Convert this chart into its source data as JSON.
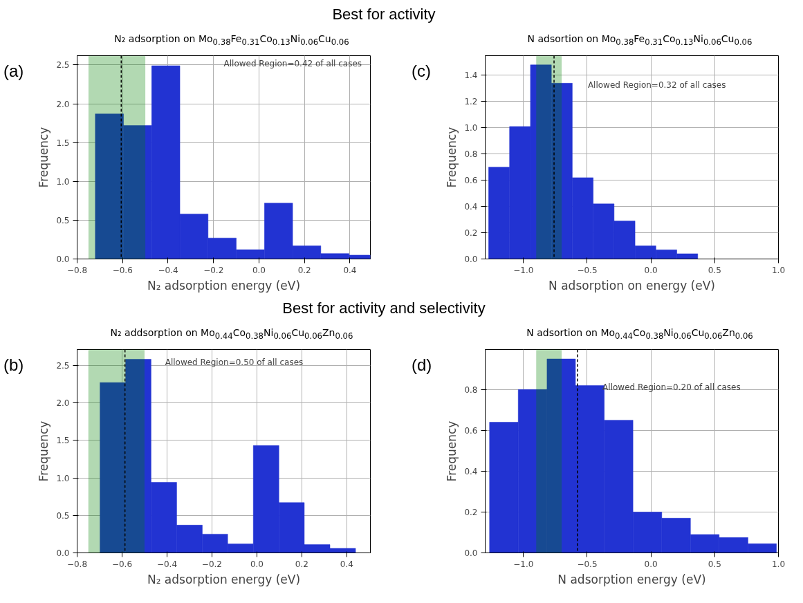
{
  "chart_data": [
    {
      "type": "histogram",
      "title": "N₂ adsorption on Mo$_{0.38}$Fe$_{0.31}$Co$_{0.13}$Ni$_{0.06}$Cu$_{0.06}$",
      "xlabel": "N₂ adsorption energy (eV)",
      "ylabel": "Frequency",
      "annotations": [
        "(a)",
        "Allowed Region=0.42 of all cases",
        "Best for activity"
      ],
      "bins": [
        -0.72,
        -0.596,
        -0.472,
        -0.348,
        -0.224,
        -0.1,
        0.024,
        0.148,
        0.272,
        0.396,
        0.49
      ],
      "values": [
        1.87,
        1.72,
        2.49,
        0.58,
        0.27,
        0.12,
        0.72,
        0.17,
        0.07,
        0.05
      ],
      "color": "#2233d2",
      "xlim": [
        -0.8,
        0.49
      ],
      "ylim": [
        0,
        2.62
      ],
      "xticks": [
        -0.8,
        -0.6,
        -0.4,
        -0.2,
        {
          "value": 0,
          "label": "0.0"
        },
        0.2,
        0.4
      ],
      "yticks": [
        {
          "value": 0,
          "label": "0.0"
        },
        0.5,
        {
          "value": 1,
          "label": "1.0"
        },
        1.5,
        {
          "value": 2,
          "label": "2.0"
        },
        2.5
      ],
      "grid": true,
      "ref_lines": [
        {
          "axis": "x",
          "value": -0.606,
          "color": "#000000",
          "line_style": "dashed"
        }
      ],
      "bands": [
        {
          "axis": "x",
          "from": -0.75,
          "to": -0.5,
          "color": "#008000"
        }
      ]
    },
    {
      "type": "histogram",
      "title": "N adsortion on Mo$_{0.38}$Fe$_{0.31}$Co$_{0.13}$Ni$_{0.06}$Cu$_{0.06}$",
      "xlabel": "N adsorption on energy (eV)",
      "ylabel": "Frequency",
      "annotations": [
        "(c)",
        "Allowed Region=0.32 of all cases"
      ],
      "bins": [
        -1.273,
        -1.109,
        -0.945,
        -0.781,
        -0.617,
        -0.453,
        -0.289,
        -0.125,
        0.039,
        0.203,
        0.367
      ],
      "values": [
        0.7,
        1.01,
        1.48,
        1.34,
        0.62,
        0.42,
        0.29,
        0.1,
        0.07,
        0.04
      ],
      "color": "#2233d2",
      "xlim": [
        -1.3,
        1.0
      ],
      "ylim": [
        0,
        1.55
      ],
      "xticks": [
        {
          "value": -1,
          "label": "−1.0"
        },
        -0.5,
        {
          "value": 0,
          "label": "0.0"
        },
        0.5,
        {
          "value": 1,
          "label": "1.0"
        }
      ],
      "yticks": [
        {
          "value": 0,
          "label": "0.0"
        },
        0.2,
        0.4,
        0.6,
        0.8,
        {
          "value": 1,
          "label": "1.0"
        },
        1.2,
        1.4
      ],
      "grid": true,
      "ref_lines": [
        {
          "axis": "x",
          "value": -0.76,
          "color": "#000000",
          "line_style": "dashed"
        }
      ],
      "bands": [
        {
          "axis": "x",
          "from": -0.9,
          "to": -0.7,
          "color": "#008000"
        }
      ]
    },
    {
      "type": "histogram",
      "title": "N₂ addsorption on Mo$_{0.44}$Co$_{0.38}$Ni$_{0.06}$Cu$_{0.06}$Zn$_{0.06}$",
      "xlabel": "N₂ adsorption energy (eV)",
      "ylabel": "Frequency",
      "annotations": [
        "(b)",
        "Allowed Region=0.50 of all cases",
        "Best for activity and selectivity"
      ],
      "bins": [
        -0.698,
        -0.584,
        -0.471,
        -0.357,
        -0.243,
        -0.13,
        -0.016,
        0.098,
        0.211,
        0.325,
        0.439
      ],
      "values": [
        2.27,
        2.58,
        0.94,
        0.37,
        0.25,
        0.12,
        1.43,
        0.67,
        0.11,
        0.06
      ],
      "color": "#2233d2",
      "xlim": [
        -0.8,
        0.505
      ],
      "ylim": [
        0,
        2.71
      ],
      "xticks": [
        -0.8,
        -0.6,
        -0.4,
        -0.2,
        {
          "value": 0,
          "label": "0.0"
        },
        0.2,
        0.4
      ],
      "yticks": [
        {
          "value": 0,
          "label": "0.0"
        },
        0.5,
        {
          "value": 1,
          "label": "1.0"
        },
        1.5,
        {
          "value": 2,
          "label": "2.0"
        },
        2.5
      ],
      "grid": true,
      "ref_lines": [
        {
          "axis": "x",
          "value": -0.587,
          "color": "#000000",
          "line_style": "dashed"
        }
      ],
      "bands": [
        {
          "axis": "x",
          "from": -0.75,
          "to": -0.5,
          "color": "#008000"
        }
      ]
    },
    {
      "type": "histogram",
      "title": "N adsortion on Mo$_{0.44}$Co$_{0.38}$Ni$_{0.06}$Cu$_{0.06}$Zn$_{0.06}$",
      "xlabel": "N adsorption energy (eV)",
      "ylabel": "Frequency",
      "annotations": [
        "(d)",
        "Allowed Region=0.20 of all cases"
      ],
      "bins": [
        -1.266,
        -1.041,
        -0.815,
        -0.592,
        -0.366,
        -0.141,
        0.085,
        0.31,
        0.535,
        0.761,
        0.984
      ],
      "values": [
        0.64,
        0.8,
        0.95,
        0.82,
        0.65,
        0.2,
        0.17,
        0.09,
        0.075,
        0.045
      ],
      "color": "#2233d2",
      "xlim": [
        -1.3,
        1.0
      ],
      "ylim": [
        0,
        0.996
      ],
      "xticks": [
        {
          "value": -1,
          "label": "−1.0"
        },
        -0.5,
        {
          "value": 0,
          "label": "0.0"
        },
        0.5,
        {
          "value": 1,
          "label": "1.0"
        }
      ],
      "yticks": [
        {
          "value": 0,
          "label": "0.0"
        },
        0.2,
        0.4,
        0.6,
        0.8
      ],
      "grid": true,
      "ref_lines": [
        {
          "axis": "x",
          "value": -0.576,
          "color": "#000000",
          "line_style": "dashed"
        }
      ],
      "bands": [
        {
          "axis": "x",
          "from": -0.9,
          "to": -0.7,
          "color": "#008000"
        }
      ]
    }
  ]
}
